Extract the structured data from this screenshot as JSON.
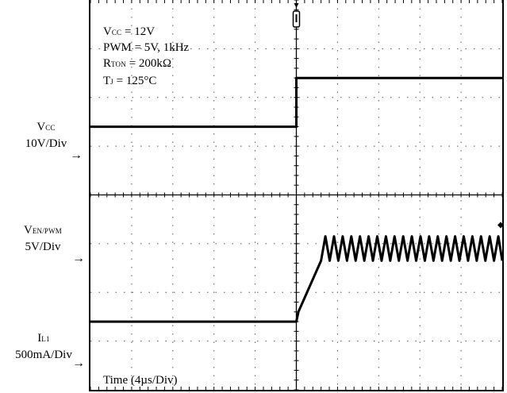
{
  "chart_data": {
    "type": "line",
    "title": "",
    "conditions": {
      "vcc": {
        "symbol": "V",
        "sub": "CC",
        "value": "= 12V"
      },
      "pwm": "PWM = 5V, 1kHz",
      "rton": {
        "symbol": "R",
        "sub": "TON",
        "value": "= 200kΩ"
      },
      "tj": {
        "symbol": "T",
        "sub": "J",
        "value": "= 125°C"
      }
    },
    "channels": [
      {
        "name": "VCC",
        "symbol": "V",
        "sub": "CC",
        "scale": "10V/Div",
        "color": "#000000"
      },
      {
        "name": "VEN/PWM",
        "symbol": "V",
        "sub": "EN/PWM",
        "scale": "5V/Div",
        "color": "#000000"
      },
      {
        "name": "IL1",
        "symbol": "I",
        "sub": "L1",
        "scale": "500mA/Div",
        "color": "#000000"
      }
    ],
    "xlabel": "Time (4µs/Div)",
    "x_divisions": 10,
    "y_divisions": 8,
    "trigger_time_div": 5,
    "series": [
      {
        "name": "VCC",
        "x": [
          0,
          10
        ],
        "y_div": [
          5.4,
          5.4
        ]
      },
      {
        "name": "VEN/PWM",
        "x": [
          0,
          5,
          5,
          10
        ],
        "y_div": [
          1.4,
          1.4,
          2.4,
          2.4
        ]
      },
      {
        "name": "IL1",
        "x": [
          0,
          5,
          5.6,
          10
        ],
        "y_div": [
          -2.6,
          -2.6,
          -1.1,
          -1.1
        ],
        "ripple_div": 0.25,
        "ripple_period_div": 0.21
      }
    ]
  }
}
